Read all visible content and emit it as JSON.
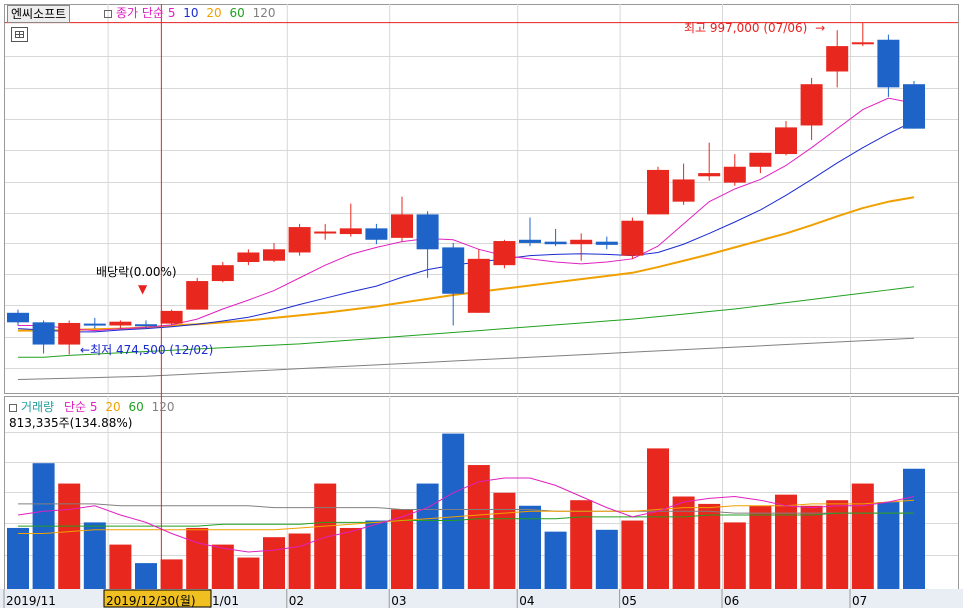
{
  "header": {
    "stock_name": "엔씨소프트",
    "price_label": "종가 단순",
    "ma_periods": [
      "5",
      "10",
      "20",
      "60",
      "120"
    ],
    "volume_label": "거래량",
    "volume_ma_label": "단순",
    "volume_periods": [
      "5",
      "20",
      "60",
      "120"
    ],
    "volume_value": "813,335주(134.88%)"
  },
  "annotations": {
    "high": "최고 997,000 (07/06)",
    "low": "최저 474,500 (12/02)",
    "dividend": "배당락(0.00%)",
    "crosshair_date": "2019/12/30(월)"
  },
  "colors": {
    "up": "#e8281e",
    "down": "#1e64c8",
    "ma5": "#e020c0",
    "ma10": "#1a2ad0",
    "ma20": "#f0a000",
    "ma60": "#20a020",
    "ma120": "#808080",
    "crosshair": "#e82020"
  },
  "chart_data": {
    "type": "candlestick",
    "x_tick_labels": [
      "2019/11",
      "2019/12/30(월)",
      "1/01",
      "02",
      "03",
      "04",
      "05",
      "06",
      "07"
    ],
    "price_high_line": 997000,
    "candles": [
      {
        "o": 540000,
        "h": 545000,
        "l": 520000,
        "c": 525000,
        "v": 0.33
      },
      {
        "o": 525000,
        "h": 528000,
        "l": 476000,
        "c": 490000,
        "v": 0.68
      },
      {
        "o": 490000,
        "h": 528000,
        "l": 474500,
        "c": 524000,
        "v": 0.57
      },
      {
        "o": 523000,
        "h": 532000,
        "l": 515000,
        "c": 522000,
        "v": 0.36
      },
      {
        "o": 520000,
        "h": 528000,
        "l": 515000,
        "c": 526000,
        "v": 0.24
      },
      {
        "o": 522000,
        "h": 528000,
        "l": 516000,
        "c": 520000,
        "v": 0.14
      },
      {
        "o": 523000,
        "h": 545000,
        "l": 520000,
        "c": 543000,
        "v": 0.16
      },
      {
        "o": 545000,
        "h": 595000,
        "l": 545000,
        "c": 590000,
        "v": 0.33
      },
      {
        "o": 590000,
        "h": 620000,
        "l": 588000,
        "c": 615000,
        "v": 0.24
      },
      {
        "o": 620000,
        "h": 640000,
        "l": 615000,
        "c": 635000,
        "v": 0.17
      },
      {
        "o": 622000,
        "h": 650000,
        "l": 620000,
        "c": 640000,
        "v": 0.28
      },
      {
        "o": 635000,
        "h": 680000,
        "l": 630000,
        "c": 675000,
        "v": 0.3
      },
      {
        "o": 665000,
        "h": 680000,
        "l": 655000,
        "c": 668000,
        "v": 0.57
      },
      {
        "o": 664000,
        "h": 712000,
        "l": 660000,
        "c": 673000,
        "v": 0.33
      },
      {
        "o": 673000,
        "h": 680000,
        "l": 648000,
        "c": 655000,
        "v": 0.37
      },
      {
        "o": 658000,
        "h": 723000,
        "l": 652000,
        "c": 695000,
        "v": 0.43
      },
      {
        "o": 695000,
        "h": 700000,
        "l": 595000,
        "c": 640000,
        "v": 0.57
      },
      {
        "o": 643000,
        "h": 650000,
        "l": 520000,
        "c": 570000,
        "v": 0.84
      },
      {
        "o": 540000,
        "h": 640000,
        "l": 540000,
        "c": 625000,
        "v": 0.67
      },
      {
        "o": 615000,
        "h": 655000,
        "l": 610000,
        "c": 653000,
        "v": 0.52
      },
      {
        "o": 655000,
        "h": 690000,
        "l": 645000,
        "c": 650000,
        "v": 0.45
      },
      {
        "o": 652000,
        "h": 672000,
        "l": 645000,
        "c": 648000,
        "v": 0.31
      },
      {
        "o": 648000,
        "h": 665000,
        "l": 622000,
        "c": 655000,
        "v": 0.48
      },
      {
        "o": 652000,
        "h": 660000,
        "l": 640000,
        "c": 647000,
        "v": 0.32
      },
      {
        "o": 630000,
        "h": 690000,
        "l": 625000,
        "c": 685000,
        "v": 0.37
      },
      {
        "o": 695000,
        "h": 770000,
        "l": 695000,
        "c": 765000,
        "v": 0.76
      },
      {
        "o": 715000,
        "h": 775000,
        "l": 710000,
        "c": 750000,
        "v": 0.5
      },
      {
        "o": 755000,
        "h": 808000,
        "l": 748000,
        "c": 760000,
        "v": 0.46
      },
      {
        "o": 745000,
        "h": 790000,
        "l": 740000,
        "c": 770000,
        "v": 0.36
      },
      {
        "o": 770000,
        "h": 792000,
        "l": 760000,
        "c": 792000,
        "v": 0.45
      },
      {
        "o": 790000,
        "h": 842000,
        "l": 788000,
        "c": 832000,
        "v": 0.51
      },
      {
        "o": 835000,
        "h": 910000,
        "l": 812000,
        "c": 900000,
        "v": 0.45
      },
      {
        "o": 920000,
        "h": 985000,
        "l": 895000,
        "c": 960000,
        "v": 0.48
      },
      {
        "o": 965000,
        "h": 997000,
        "l": 960000,
        "c": 966000,
        "v": 0.57
      },
      {
        "o": 970000,
        "h": 978000,
        "l": 880000,
        "c": 895000,
        "v": 0.47
      },
      {
        "o": 900000,
        "h": 905000,
        "l": 830000,
        "c": 830000,
        "v": 0.65
      }
    ],
    "ma": {
      "ma5": [
        520000,
        520000,
        515000,
        512000,
        515000,
        517000,
        521000,
        530000,
        546000,
        560000,
        575000,
        595000,
        615000,
        632000,
        643000,
        652000,
        657000,
        655000,
        640000,
        630000,
        625000,
        620000,
        617000,
        620000,
        625000,
        645000,
        680000,
        715000,
        735000,
        750000,
        772000,
        800000,
        830000,
        860000,
        878000,
        870000
      ],
      "ma10": [
        515000,
        513000,
        510000,
        510000,
        513000,
        515000,
        518000,
        522000,
        527000,
        533000,
        542000,
        553000,
        563000,
        573000,
        582000,
        596000,
        608000,
        615000,
        620000,
        625000,
        630000,
        632000,
        633000,
        632000,
        630000,
        635000,
        648000,
        665000,
        683000,
        702000,
        725000,
        750000,
        776000,
        800000,
        822000,
        842000
      ],
      "ma20": [
        512000,
        512000,
        513000,
        514000,
        515000,
        517000,
        520000,
        522000,
        525000,
        528000,
        532000,
        536000,
        540000,
        545000,
        550000,
        556000,
        562000,
        568000,
        573000,
        578000,
        583000,
        588000,
        593000,
        598000,
        603000,
        612000,
        622000,
        632000,
        643000,
        654000,
        665000,
        678000,
        692000,
        705000,
        715000,
        722000
      ],
      "ma60": [
        470000,
        470000,
        473000,
        475000,
        477000,
        479000,
        481000,
        483000,
        485000,
        487000,
        489000,
        491000,
        494000,
        497000,
        500000,
        503000,
        506000,
        509000,
        512000,
        515000,
        518000,
        521000,
        524000,
        527000,
        530000,
        534000,
        538000,
        542000,
        546000,
        551000,
        556000,
        561000,
        566000,
        571000,
        576000,
        581000
      ],
      "ma120": [
        435000,
        436000,
        437000,
        438000,
        439000,
        440000,
        442000,
        444000,
        446000,
        448000,
        450000,
        452000,
        454000,
        456000,
        458000,
        460000,
        462000,
        464000,
        466000,
        468000,
        470000,
        472000,
        474000,
        476000,
        478000,
        480000,
        482000,
        484000,
        486000,
        488000,
        490000,
        492000,
        494000,
        496000,
        498000,
        500000
      ]
    },
    "volume_ma": {
      "v5": [
        0.4,
        0.42,
        0.43,
        0.45,
        0.4,
        0.36,
        0.3,
        0.25,
        0.22,
        0.2,
        0.21,
        0.23,
        0.28,
        0.31,
        0.35,
        0.39,
        0.44,
        0.52,
        0.58,
        0.6,
        0.6,
        0.56,
        0.5,
        0.44,
        0.39,
        0.42,
        0.47,
        0.49,
        0.5,
        0.48,
        0.45,
        0.44,
        0.45,
        0.45,
        0.47,
        0.5
      ],
      "v20": [
        0.3,
        0.3,
        0.31,
        0.32,
        0.32,
        0.32,
        0.32,
        0.32,
        0.32,
        0.32,
        0.32,
        0.33,
        0.34,
        0.35,
        0.36,
        0.37,
        0.38,
        0.39,
        0.4,
        0.41,
        0.42,
        0.42,
        0.42,
        0.42,
        0.42,
        0.43,
        0.44,
        0.44,
        0.45,
        0.45,
        0.45,
        0.46,
        0.46,
        0.46,
        0.47,
        0.48
      ],
      "v60": [
        0.34,
        0.34,
        0.34,
        0.34,
        0.34,
        0.34,
        0.34,
        0.34,
        0.35,
        0.35,
        0.35,
        0.35,
        0.36,
        0.36,
        0.36,
        0.37,
        0.37,
        0.37,
        0.38,
        0.38,
        0.38,
        0.38,
        0.39,
        0.39,
        0.39,
        0.39,
        0.39,
        0.4,
        0.4,
        0.4,
        0.4,
        0.4,
        0.41,
        0.41,
        0.41,
        0.41
      ],
      "v120": [
        0.46,
        0.46,
        0.46,
        0.46,
        0.45,
        0.45,
        0.45,
        0.45,
        0.45,
        0.45,
        0.44,
        0.44,
        0.44,
        0.44,
        0.44,
        0.43,
        0.43,
        0.43,
        0.43,
        0.43,
        0.43,
        0.42,
        0.42,
        0.42,
        0.42,
        0.42,
        0.42,
        0.42,
        0.41,
        0.41,
        0.41,
        0.41,
        0.41,
        0.41,
        0.41,
        0.41
      ]
    }
  }
}
